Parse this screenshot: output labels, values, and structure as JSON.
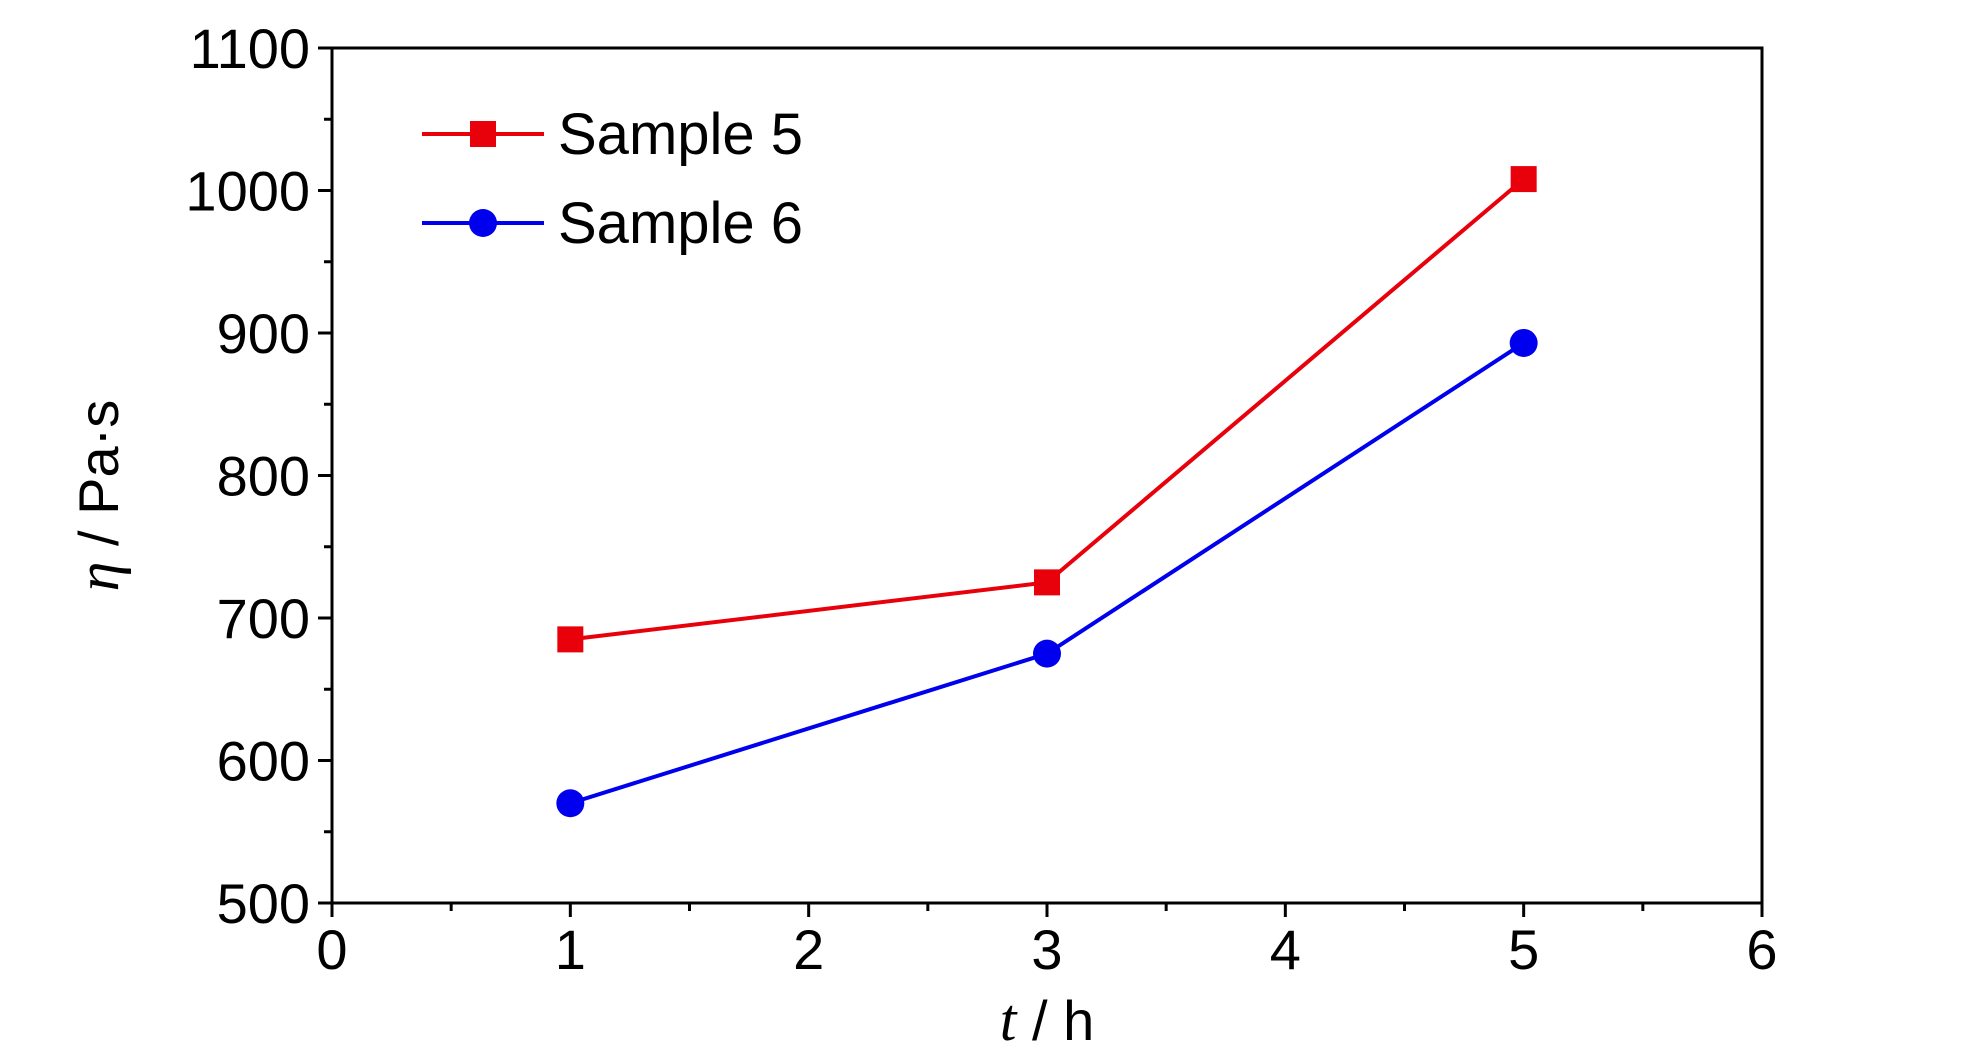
{
  "chart_data": {
    "type": "line",
    "xlabel": {
      "var": "t",
      "sep": " / ",
      "unit": "h"
    },
    "ylabel": {
      "var": "η",
      "sep": " / ",
      "unit": "Pa·s"
    },
    "xlim": [
      0,
      6
    ],
    "ylim": [
      500,
      1100
    ],
    "xticks": [
      0,
      1,
      2,
      3,
      4,
      5,
      6
    ],
    "yticks": [
      500,
      600,
      700,
      800,
      900,
      1000,
      1100
    ],
    "x_minor_step": 0.5,
    "y_minor_step": 50,
    "legend_position": "top-left",
    "grid": false,
    "series": [
      {
        "name": "Sample 5",
        "color": "#e8000b",
        "marker": "square",
        "x": [
          1,
          3,
          5
        ],
        "y": [
          685,
          725,
          1008
        ]
      },
      {
        "name": "Sample 6",
        "color": "#0000ee",
        "marker": "circle",
        "x": [
          1,
          3,
          5
        ],
        "y": [
          570,
          675,
          893
        ]
      }
    ]
  }
}
